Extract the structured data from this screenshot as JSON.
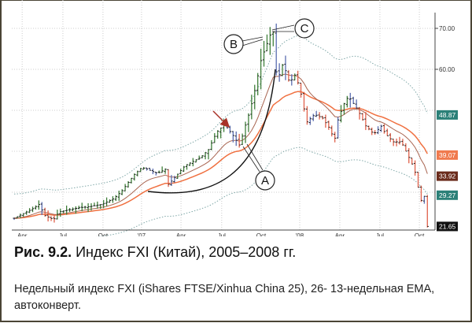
{
  "chart_data": {
    "type": "bar",
    "title": "Недельный индекс FXI",
    "x_unit": "week index from mid-March 2005",
    "price_path": [
      [
        0,
        23.65
      ],
      [
        3,
        24.8
      ],
      [
        5.6,
        25.8
      ],
      [
        8.2,
        27.1
      ],
      [
        9.7,
        24.4
      ],
      [
        12.8,
        23.3
      ],
      [
        14.5,
        25.2
      ],
      [
        17.1,
        25.6
      ],
      [
        20.9,
        26.2
      ],
      [
        24.7,
        26.5
      ],
      [
        28.6,
        27.1
      ],
      [
        32.4,
        28.5
      ],
      [
        35,
        30.4
      ],
      [
        38.8,
        34.2
      ],
      [
        41.3,
        35.96
      ],
      [
        42.6,
        35.8
      ],
      [
        46.4,
        34.6
      ],
      [
        49,
        35.6
      ],
      [
        49.7,
        31.7
      ],
      [
        51.5,
        33.1
      ],
      [
        55.4,
        36.5
      ],
      [
        60.5,
        38.5
      ],
      [
        63,
        40.4
      ],
      [
        65.6,
        44.6
      ],
      [
        68.1,
        46.5
      ],
      [
        70.7,
        44.2
      ],
      [
        73.2,
        41.3
      ],
      [
        74.5,
        45.2
      ],
      [
        76.5,
        50
      ],
      [
        78.3,
        55.8
      ],
      [
        80.1,
        62.5
      ],
      [
        81.6,
        65.4
      ],
      [
        82.9,
        68.3
      ],
      [
        84.2,
        69.2
      ],
      [
        84.7,
        59.6
      ],
      [
        86,
        58.7
      ],
      [
        87.2,
        61.5
      ],
      [
        89.3,
        56.7
      ],
      [
        91.1,
        58.7
      ],
      [
        92.6,
        55.4
      ],
      [
        94.9,
        47.1
      ],
      [
        97.4,
        49
      ],
      [
        100,
        48.1
      ],
      [
        102.6,
        45.2
      ],
      [
        103.8,
        42.3
      ],
      [
        105.1,
        48.1
      ],
      [
        107.7,
        52.9
      ],
      [
        108.9,
        52.9
      ],
      [
        111.5,
        50
      ],
      [
        114,
        46.2
      ],
      [
        116.6,
        44.2
      ],
      [
        119.1,
        46.2
      ],
      [
        120.4,
        44.2
      ],
      [
        123,
        42.3
      ],
      [
        125.5,
        42.3
      ],
      [
        128,
        38.5
      ],
      [
        129.8,
        35.6
      ],
      [
        131.9,
        27.9
      ],
      [
        133.2,
        29.2
      ],
      [
        134,
        21.65
      ]
    ],
    "ema_periods": [
      26,
      13
    ],
    "envelope_pct": 25,
    "x_ticks": [
      {
        "label": "Apr",
        "week": 2.6
      },
      {
        "label": "Jul",
        "week": 15.8
      },
      {
        "label": "Oct",
        "week": 28.8
      },
      {
        "label": "'07",
        "week": 41.3
      },
      {
        "label": "Apr",
        "week": 54.1
      },
      {
        "label": "Jul",
        "week": 67.3
      },
      {
        "label": "Oct",
        "week": 80.1
      },
      {
        "label": "'08",
        "week": 92.6
      },
      {
        "label": "Apr",
        "week": 105.6
      },
      {
        "label": "Jul",
        "week": 118.6
      },
      {
        "label": "Oct",
        "week": 131.4
      }
    ],
    "y_ticks": [
      {
        "label": "70.00",
        "value": 70
      },
      {
        "label": "60.00",
        "value": 60
      }
    ],
    "y_gridlines": [
      30,
      40,
      50,
      60,
      70
    ],
    "ylim": [
      20.5,
      76.9
    ],
    "last_values": [
      {
        "label": "48.87",
        "value": 48.87,
        "name": "upper-envelope",
        "color": "#2b8078"
      },
      {
        "label": "39.07",
        "value": 39.07,
        "name": "ema-26",
        "color": "#f07a4e"
      },
      {
        "label": "33.92",
        "value": 33.92,
        "name": "ema-13",
        "color": "#6b2c1c"
      },
      {
        "label": "29.27",
        "value": 29.27,
        "name": "lower-envelope",
        "color": "#2b8078"
      },
      {
        "label": "21.65",
        "value": 21.65,
        "name": "last-price",
        "color": "#111111"
      }
    ],
    "annotations": [
      "A",
      "B",
      "C"
    ],
    "colors": {
      "up": "#3f7f3a",
      "down": "#e0604a",
      "neutral": "#5a6cb0",
      "ema_slow": "#f07040",
      "ema_fast": "#a86450",
      "envelope": "#80a8a8",
      "arrow": "#a83228"
    }
  },
  "caption": {
    "fig_label": "Рис. 9.2.",
    "title": " Индекс FXI (Китай), 2005–2008 гг."
  },
  "subtitle": "Недельный индекс FXI (iShares FTSE/Xinhua China 25), 26- 13-недельная EMA, автоконверт."
}
